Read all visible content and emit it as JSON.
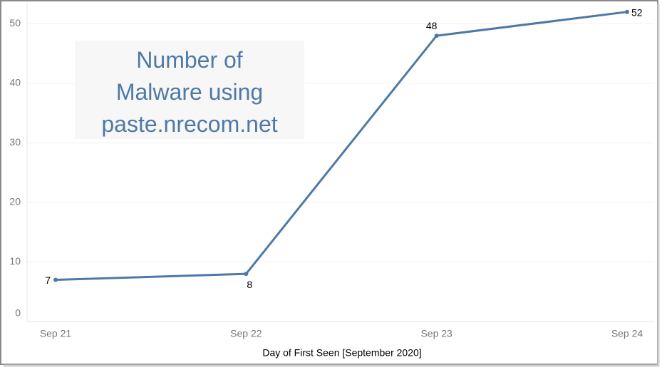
{
  "chart_data": {
    "type": "line",
    "title": "Number of Malware using paste.nrecom.net",
    "x_label": "Day of First Seen [September 2020]",
    "categories": [
      "Sep 21",
      "Sep 22",
      "Sep 23",
      "Sep 24"
    ],
    "values": [
      7,
      8,
      48,
      52
    ],
    "color": "#4e79a7",
    "ylim": [
      0,
      53.4
    ],
    "yticks": [
      0,
      10,
      20,
      30,
      40,
      50
    ],
    "grid": true
  }
}
